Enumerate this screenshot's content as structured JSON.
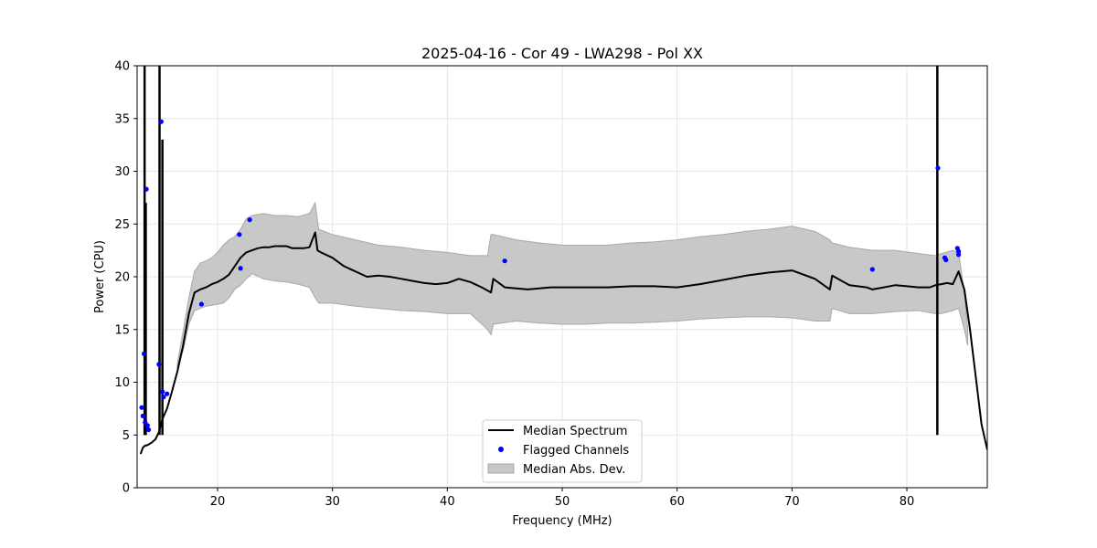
{
  "chart_data": {
    "type": "line",
    "title": "2025-04-16 - Cor 49 - LWA298 - Pol XX",
    "xlabel": "Frequency (MHz)",
    "ylabel": "Power (CPU)",
    "xlim": [
      13.0,
      87.0
    ],
    "ylim": [
      0,
      40
    ],
    "xticks": [
      20,
      30,
      40,
      50,
      60,
      70,
      80
    ],
    "yticks": [
      0,
      5,
      10,
      15,
      20,
      25,
      30,
      35,
      40
    ],
    "grid": true,
    "legend_position": "bottom-center",
    "legend": [
      "Median Spectrum",
      "Flagged Channels",
      "Median Abs. Dev."
    ],
    "colors": {
      "median": "#000000",
      "flagged": "#0000ff",
      "mad_fill": "#c8c8c8",
      "mad_edge": "#a8a8a8",
      "grid": "#e5e5e5"
    },
    "series": [
      {
        "name": "Median Spectrum",
        "x": [
          13.3,
          13.5,
          13.6,
          13.7,
          13.8,
          14.0,
          14.3,
          14.6,
          14.9,
          15.2,
          15.6,
          16.0,
          16.5,
          17.0,
          17.5,
          18.0,
          18.5,
          19.0,
          19.5,
          20.0,
          20.5,
          21.0,
          21.5,
          22.0,
          22.5,
          23.0,
          23.5,
          24.0,
          24.5,
          25.0,
          25.5,
          26.0,
          26.5,
          27.0,
          27.5,
          28.0,
          28.5,
          28.7,
          29.0,
          30.0,
          31.0,
          32.0,
          33.0,
          34.0,
          35.0,
          36.0,
          37.0,
          38.0,
          39.0,
          40.0,
          41.0,
          42.0,
          43.0,
          43.8,
          44.0,
          45.0,
          46.0,
          47.0,
          48.0,
          49.0,
          50.0,
          52.0,
          54.0,
          56.0,
          58.0,
          60.0,
          62.0,
          64.0,
          66.0,
          68.0,
          70.0,
          72.0,
          73.3,
          73.5,
          75.0,
          76.5,
          77.0,
          78.0,
          79.0,
          80.0,
          81.0,
          82.0,
          82.5,
          83.0,
          83.5,
          84.0,
          84.5,
          85.0,
          85.5,
          86.0,
          86.5,
          87.0
        ],
        "y": [
          3.2,
          3.8,
          3.9,
          4.0,
          4.0,
          4.1,
          4.3,
          4.6,
          5.3,
          6.5,
          7.5,
          9.0,
          11.0,
          13.5,
          16.5,
          18.5,
          18.8,
          19.0,
          19.3,
          19.5,
          19.8,
          20.2,
          21.0,
          21.8,
          22.3,
          22.5,
          22.7,
          22.8,
          22.8,
          22.9,
          22.9,
          22.9,
          22.7,
          22.7,
          22.7,
          22.8,
          24.2,
          22.5,
          22.3,
          21.8,
          21.0,
          20.5,
          20.0,
          20.1,
          20.0,
          19.8,
          19.6,
          19.4,
          19.3,
          19.4,
          19.8,
          19.5,
          19.0,
          18.5,
          19.8,
          19.0,
          18.9,
          18.8,
          18.9,
          19.0,
          19.0,
          19.0,
          19.0,
          19.1,
          19.1,
          19.0,
          19.3,
          19.7,
          20.1,
          20.4,
          20.6,
          19.8,
          18.8,
          20.1,
          19.2,
          19.0,
          18.8,
          19.0,
          19.2,
          19.1,
          19.0,
          19.0,
          19.2,
          19.3,
          19.4,
          19.3,
          20.5,
          18.8,
          15.0,
          10.5,
          6.0,
          3.6
        ]
      },
      {
        "name": "Flagged Channels",
        "x": [
          13.4,
          13.5,
          13.6,
          13.7,
          13.8,
          13.9,
          14.0,
          14.9,
          15.1,
          15.2,
          15.3,
          15.6,
          18.6,
          21.9,
          22.0,
          22.8,
          45.0,
          77.0,
          82.7,
          83.3,
          83.4,
          84.4,
          84.5,
          84.5
        ],
        "y": [
          7.6,
          6.8,
          12.7,
          6.2,
          28.3,
          5.9,
          5.5,
          11.7,
          34.7,
          9.1,
          8.6,
          8.9,
          17.4,
          24.0,
          20.8,
          25.4,
          21.5,
          20.7,
          30.3,
          21.8,
          21.6,
          22.7,
          22.4,
          22.1
        ]
      },
      {
        "name": "Median Abs. Dev.",
        "x": [
          16.5,
          17.0,
          17.5,
          18.0,
          18.5,
          19.0,
          19.5,
          20.0,
          20.5,
          21.0,
          21.5,
          22.0,
          22.5,
          23.0,
          24.0,
          25.0,
          26.0,
          27.0,
          28.0,
          28.5,
          28.8,
          30.0,
          32.0,
          34.0,
          36.0,
          38.0,
          40.0,
          42.0,
          43.5,
          43.8,
          44.0,
          46.0,
          48.0,
          50.0,
          52.0,
          54.0,
          56.0,
          58.0,
          60.0,
          62.0,
          64.0,
          66.0,
          68.0,
          70.0,
          72.0,
          73.3,
          73.5,
          75.0,
          77.0,
          79.0,
          81.0,
          82.5,
          83.0,
          84.0,
          84.5,
          85.0,
          85.3
        ],
        "upper": [
          11.8,
          14.8,
          18.0,
          20.5,
          21.3,
          21.5,
          21.8,
          22.3,
          23.0,
          23.5,
          23.8,
          24.5,
          25.5,
          25.8,
          26.0,
          25.8,
          25.8,
          25.7,
          26.0,
          27.0,
          24.5,
          24.0,
          23.5,
          23.0,
          22.8,
          22.5,
          22.3,
          22.0,
          22.0,
          24.0,
          24.0,
          23.5,
          23.2,
          23.0,
          23.0,
          23.0,
          23.2,
          23.3,
          23.5,
          23.8,
          24.0,
          24.3,
          24.5,
          24.8,
          24.3,
          23.5,
          23.2,
          22.8,
          22.5,
          22.5,
          22.2,
          22.0,
          22.2,
          22.5,
          22.3,
          18.5,
          15.0
        ],
        "lower": [
          11.3,
          13.0,
          15.5,
          16.8,
          17.0,
          17.2,
          17.3,
          17.4,
          17.5,
          18.0,
          18.8,
          19.2,
          19.8,
          20.3,
          19.8,
          19.6,
          19.5,
          19.3,
          19.0,
          18.0,
          17.5,
          17.5,
          17.2,
          17.0,
          16.8,
          16.7,
          16.5,
          16.5,
          15.0,
          14.5,
          15.5,
          15.8,
          15.6,
          15.5,
          15.5,
          15.6,
          15.6,
          15.7,
          15.8,
          16.0,
          16.1,
          16.2,
          16.2,
          16.1,
          15.8,
          15.8,
          17.0,
          16.5,
          16.5,
          16.7,
          16.8,
          16.5,
          16.5,
          16.8,
          17.0,
          15.0,
          13.5
        ]
      }
    ],
    "spikes": [
      {
        "x": 13.65,
        "ytop": 40
      },
      {
        "x": 13.75,
        "ytop": 27.0
      },
      {
        "x": 14.95,
        "ytop": 40
      },
      {
        "x": 15.2,
        "ytop": 33.0
      },
      {
        "x": 82.65,
        "ytop": 40
      }
    ]
  }
}
